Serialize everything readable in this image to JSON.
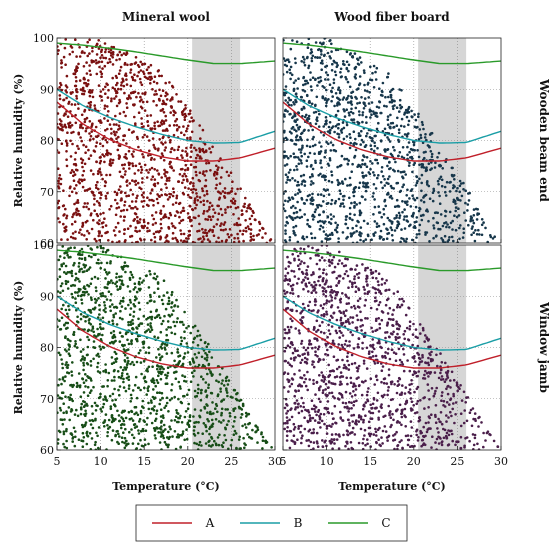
{
  "chart_data": {
    "type": "scatter",
    "shared": {
      "xlabel": "Temperature (°C)",
      "ylabel": "Relative humidity (%)",
      "xlim": [
        5,
        30
      ],
      "ylim": [
        60,
        100
      ],
      "xticks": [
        5,
        10,
        15,
        20,
        25,
        30
      ],
      "yticks": [
        60,
        70,
        80,
        90,
        100
      ],
      "grid": "dotted",
      "shaded_band_x": [
        20.5,
        26
      ]
    },
    "column_titles": [
      "Mineral wool",
      "Wood fiber board"
    ],
    "row_titles": [
      "Wooden beam end",
      "Window jamb"
    ],
    "curves": [
      {
        "name": "A",
        "color": "#c0202a",
        "x": [
          5,
          8,
          11,
          14,
          17,
          20,
          23,
          26,
          30
        ],
        "y": [
          87.5,
          83.2,
          80.2,
          78.2,
          76.8,
          76.0,
          76.0,
          76.6,
          78.5
        ]
      },
      {
        "name": "B",
        "color": "#1a9ea6",
        "x": [
          5,
          8,
          11,
          14,
          17,
          20,
          23,
          26,
          30
        ],
        "y": [
          90.0,
          86.8,
          84.5,
          82.7,
          81.2,
          80.0,
          79.5,
          79.6,
          81.8
        ]
      },
      {
        "name": "C",
        "color": "#2a9a2a",
        "x": [
          5,
          8,
          11,
          14,
          17,
          20,
          23,
          26,
          30
        ],
        "y": [
          99.0,
          98.6,
          98.0,
          97.3,
          96.5,
          95.7,
          95.0,
          95.0,
          95.5
        ]
      }
    ],
    "panels": [
      {
        "col": "Mineral wool",
        "row": "Wooden beam end",
        "point_color": "#7a1010",
        "n_points": 1400
      },
      {
        "col": "Wood fiber board",
        "row": "Wooden beam end",
        "point_color": "#16364a",
        "n_points": 1400
      },
      {
        "col": "Mineral wool",
        "row": "Window jamb",
        "point_color": "#174d17",
        "n_points": 1400
      },
      {
        "col": "Wood fiber board",
        "row": "Window jamb",
        "point_color": "#4a1e4a",
        "n_points": 1400
      }
    ],
    "legend": {
      "placement": "bottom-center",
      "entries": [
        "A",
        "B",
        "C"
      ]
    }
  }
}
